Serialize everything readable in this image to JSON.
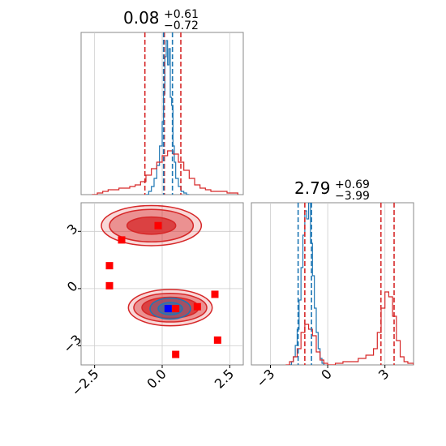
{
  "chart_data": [
    {
      "type": "histogram",
      "panel": "top-left",
      "title_value": "0.08",
      "title_plus": "+0.61",
      "title_minus": "−0.72",
      "xlim": [
        -3.0,
        3.0
      ],
      "grid": true,
      "series": [
        {
          "color": "#1f77b4",
          "style": "step",
          "bins": [
            -0.6,
            -0.5,
            -0.4,
            -0.3,
            -0.2,
            -0.1,
            0.0,
            0.05,
            0.1,
            0.15,
            0.2,
            0.25,
            0.3,
            0.35,
            0.4,
            0.45,
            0.5,
            0.6,
            0.7,
            0.8,
            0.9,
            1.0
          ],
          "heights": [
            0.0,
            0.02,
            0.05,
            0.1,
            0.18,
            0.3,
            0.45,
            0.62,
            0.85,
            0.95,
            0.8,
            0.9,
            0.6,
            0.55,
            0.3,
            0.2,
            0.1,
            0.05,
            0.02,
            0.01,
            0.0
          ]
        },
        {
          "color": "#d62728",
          "style": "step",
          "bins": [
            -2.6,
            -2.4,
            -2.2,
            -2.0,
            -1.8,
            -1.6,
            -1.4,
            -1.2,
            -1.0,
            -0.8,
            -0.6,
            -0.4,
            -0.2,
            0.0,
            0.2,
            0.4,
            0.6,
            0.8,
            1.0,
            1.2,
            1.4,
            1.6,
            1.8,
            2.0,
            2.2,
            2.4,
            2.6,
            2.8
          ],
          "heights": [
            0.0,
            0.01,
            0.02,
            0.03,
            0.03,
            0.04,
            0.04,
            0.05,
            0.06,
            0.08,
            0.12,
            0.16,
            0.2,
            0.24,
            0.27,
            0.25,
            0.2,
            0.15,
            0.1,
            0.06,
            0.04,
            0.03,
            0.02,
            0.02,
            0.02,
            0.01,
            0.01
          ]
        }
      ],
      "quantile_lines": [
        {
          "color": "#d62728",
          "x": [
            -0.64,
            0.08,
            0.69
          ]
        },
        {
          "color": "#1f77b4",
          "x": [
            0.05,
            0.38
          ]
        }
      ]
    },
    {
      "type": "contour",
      "panel": "bottom-left",
      "xlim": [
        -3.0,
        3.0
      ],
      "ylim": [
        -4.0,
        4.5
      ],
      "xticks": [
        "−2.5",
        "0.0",
        "2.5"
      ],
      "yticks": [
        "−3",
        "0",
        "3"
      ],
      "xtick_values": [
        -2.5,
        0.0,
        2.5
      ],
      "ytick_values": [
        -3,
        0,
        3
      ],
      "grid": true,
      "contours": [
        {
          "color": "#d62728",
          "cx": 0.3,
          "cy": -1.0,
          "levels": [
            [
              1.55,
              0.95
            ],
            [
              1.35,
              0.75
            ],
            [
              1.05,
              0.55
            ]
          ]
        },
        {
          "color": "#d62728",
          "cx": -0.4,
          "cy": 3.3,
          "levels": [
            [
              1.85,
              1.05
            ],
            [
              1.55,
              0.85
            ],
            [
              0.9,
              0.45
            ]
          ]
        },
        {
          "color": "#1f77b4",
          "cx": 0.3,
          "cy": -1.05,
          "levels": [
            [
              0.75,
              0.55
            ],
            [
              0.45,
              0.32
            ]
          ]
        }
      ],
      "markers_red": [
        {
          "x": -0.15,
          "y": 3.3
        },
        {
          "x": -1.5,
          "y": 2.55
        },
        {
          "x": -1.95,
          "y": 1.2
        },
        {
          "x": -1.95,
          "y": 0.15
        },
        {
          "x": 1.95,
          "y": -0.3
        },
        {
          "x": 1.3,
          "y": -0.95
        },
        {
          "x": 0.5,
          "y": -1.05
        },
        {
          "x": 2.05,
          "y": -2.7
        },
        {
          "x": 0.5,
          "y": -3.45
        }
      ],
      "markers_blue": [
        {
          "x": 0.22,
          "y": -1.05
        }
      ]
    },
    {
      "type": "histogram",
      "panel": "bottom-right",
      "title_value": "2.79",
      "title_plus": "+0.69",
      "title_minus": "−3.99",
      "xlim": [
        -4.0,
        4.5
      ],
      "xticks": [
        "−3",
        "0",
        "3"
      ],
      "xtick_values": [
        -3,
        0,
        3
      ],
      "grid": true,
      "series": [
        {
          "color": "#1f77b4",
          "style": "step",
          "bins": [
            -2.0,
            -1.9,
            -1.8,
            -1.7,
            -1.6,
            -1.5,
            -1.4,
            -1.3,
            -1.2,
            -1.1,
            -1.0,
            -0.9,
            -0.8,
            -0.7,
            -0.6,
            -0.5,
            -0.4,
            -0.3,
            -0.2
          ],
          "heights": [
            0.0,
            0.02,
            0.05,
            0.12,
            0.22,
            0.4,
            0.6,
            0.8,
            0.95,
            0.9,
            1.0,
            0.75,
            0.55,
            0.35,
            0.2,
            0.1,
            0.04,
            0.01
          ]
        },
        {
          "color": "#d62728",
          "style": "step",
          "bins": [
            -2.2,
            -2.0,
            -1.8,
            -1.6,
            -1.4,
            -1.2,
            -1.0,
            -0.8,
            -0.6,
            -0.4,
            -0.2,
            0.0,
            0.4,
            0.8,
            1.2,
            1.6,
            2.0,
            2.4,
            2.6,
            2.8,
            3.0,
            3.2,
            3.4,
            3.6,
            3.8,
            4.0,
            4.2,
            4.5
          ],
          "heights": [
            0.0,
            0.02,
            0.05,
            0.1,
            0.2,
            0.25,
            0.22,
            0.18,
            0.08,
            0.03,
            0.01,
            0.0,
            0.01,
            0.02,
            0.02,
            0.04,
            0.06,
            0.1,
            0.2,
            0.35,
            0.45,
            0.42,
            0.3,
            0.15,
            0.05,
            0.02,
            0.01
          ]
        }
      ],
      "quantile_lines": [
        {
          "color": "#d62728",
          "x": [
            -1.2,
            2.79,
            3.48
          ]
        },
        {
          "color": "#1f77b4",
          "x": [
            -1.55,
            -0.85
          ]
        }
      ]
    }
  ]
}
